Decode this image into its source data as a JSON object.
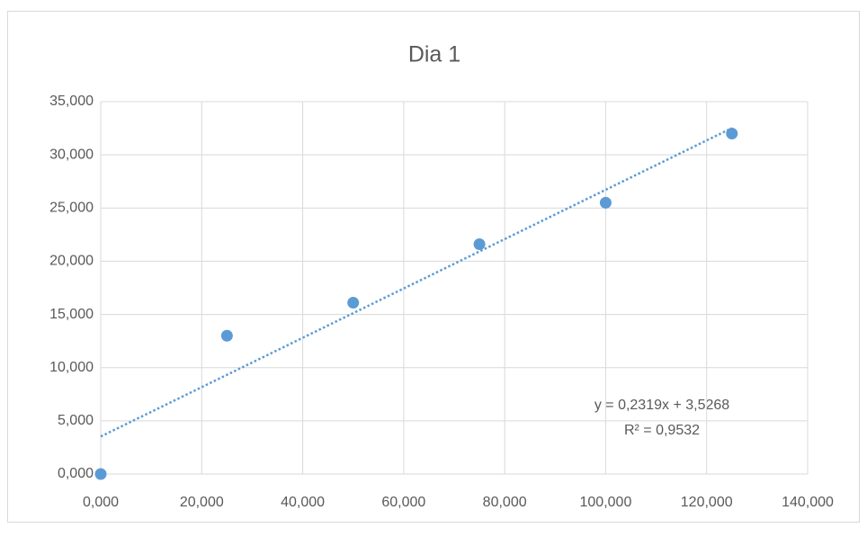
{
  "chart_data": {
    "type": "scatter",
    "title": "Dia 1",
    "x": [
      0,
      25,
      50,
      75,
      100,
      125
    ],
    "values": [
      0,
      13.0,
      16.1,
      21.6,
      25.5,
      32.0
    ],
    "color": "#5b9bd5",
    "xlim": [
      0,
      140
    ],
    "xticks": [
      {
        "value": 0,
        "label": "0,000"
      },
      {
        "value": 20,
        "label": "20,000"
      },
      {
        "value": 40,
        "label": "40,000"
      },
      {
        "value": 60,
        "label": "60,000"
      },
      {
        "value": 80,
        "label": "80,000"
      },
      {
        "value": 100,
        "label": "100,000"
      },
      {
        "value": 120,
        "label": "120,000"
      },
      {
        "value": 140,
        "label": "140,000"
      }
    ],
    "ylim": [
      0,
      35
    ],
    "yticks": [
      {
        "value": 0,
        "label": "0,000"
      },
      {
        "value": 5,
        "label": "5,000"
      },
      {
        "value": 10,
        "label": "10,000"
      },
      {
        "value": 15,
        "label": "15,000"
      },
      {
        "value": 20,
        "label": "20,000"
      },
      {
        "value": 25,
        "label": "25,000"
      },
      {
        "value": 30,
        "label": "30,000"
      },
      {
        "value": 35,
        "label": "35,000"
      }
    ],
    "grid": true,
    "trendline": {
      "slope": 0.2319,
      "intercept": 3.5268,
      "equation": "y = 0,2319x + 3,5268",
      "r2": "R² = 0,9532"
    }
  }
}
